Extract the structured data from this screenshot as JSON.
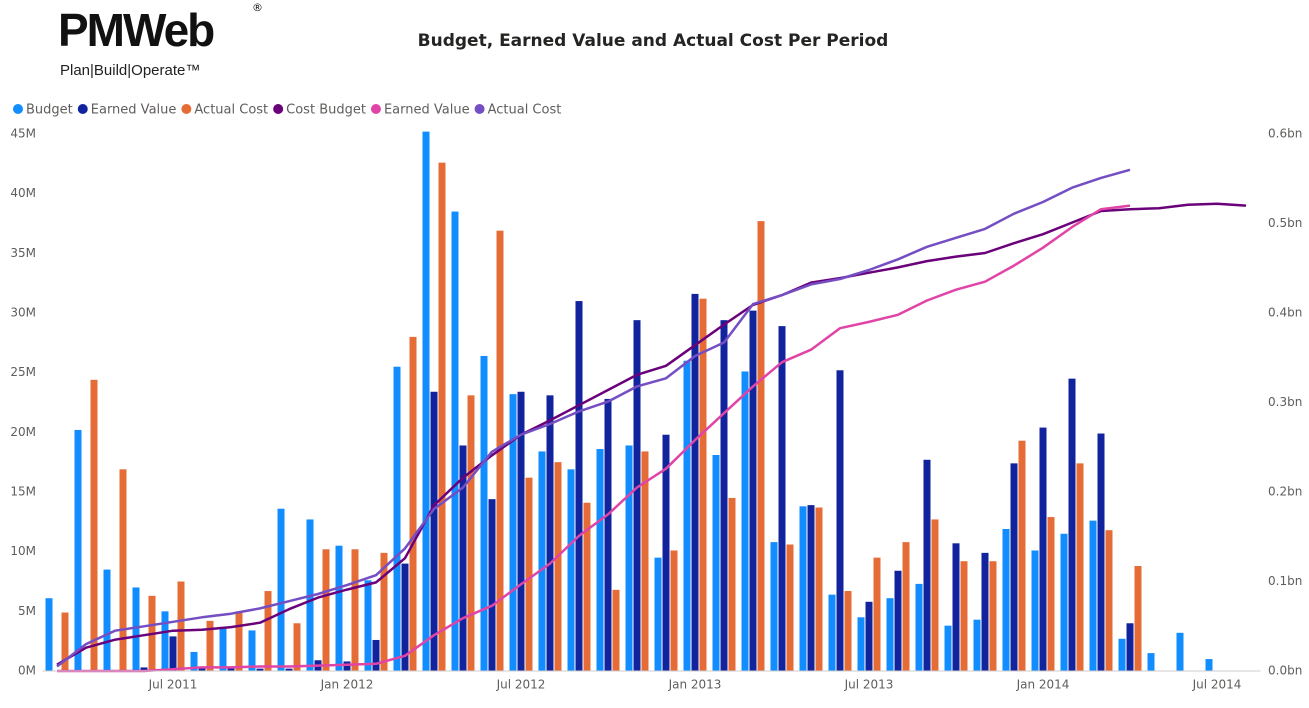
{
  "logo": {
    "name": "PMWeb",
    "registered": "®",
    "tagline": "Plan|Build|Operate™"
  },
  "chart_data": {
    "type": "bar",
    "title": "Budget, Earned Value and Actual Cost Per Period",
    "categories": [
      null,
      null,
      null,
      null,
      "Jul 2011",
      null,
      null,
      null,
      null,
      null,
      "Jan 2012",
      null,
      null,
      null,
      null,
      null,
      "Jul 2012",
      null,
      null,
      null,
      null,
      null,
      "Jan 2013",
      null,
      null,
      null,
      null,
      null,
      "Jul 2013",
      null,
      null,
      null,
      null,
      null,
      "Jan 2014",
      null,
      null,
      null,
      null,
      null,
      "Jul 2014",
      null
    ],
    "ylim": [
      0,
      45
    ],
    "yticks": [
      {
        "value": 0,
        "label": "0M"
      },
      {
        "value": 5,
        "label": "5M"
      },
      {
        "value": 10,
        "label": "10M"
      },
      {
        "value": 15,
        "label": "15M"
      },
      {
        "value": 20,
        "label": "20M"
      },
      {
        "value": 25,
        "label": "25M"
      },
      {
        "value": 30,
        "label": "30M"
      },
      {
        "value": 35,
        "label": "35M"
      },
      {
        "value": 40,
        "label": "40M"
      },
      {
        "value": 45,
        "label": "45M"
      }
    ],
    "y2lim": [
      0,
      0.6
    ],
    "y2ticks": [
      {
        "value": 0,
        "label": "0.0bn"
      },
      {
        "value": 0.1,
        "label": "0.1bn"
      },
      {
        "value": 0.2,
        "label": "0.2bn"
      },
      {
        "value": 0.3,
        "label": "0.3bn"
      },
      {
        "value": 0.4,
        "label": "0.4bn"
      },
      {
        "value": 0.5,
        "label": "0.5bn"
      },
      {
        "value": 0.6,
        "label": "0.6bn"
      }
    ],
    "grid": false,
    "series": [
      {
        "name": "Budget",
        "type": "bar",
        "color": "#118dff",
        "values": [
          6.1,
          20.2,
          8.5,
          7.0,
          5.0,
          1.6,
          3.6,
          3.4,
          13.6,
          12.7,
          10.5,
          7.6,
          25.5,
          45.2,
          38.5,
          26.4,
          23.2,
          18.4,
          16.9,
          18.6,
          18.9,
          9.5,
          26.0,
          18.1,
          25.1,
          10.8,
          13.8,
          6.4,
          4.5,
          6.1,
          7.3,
          3.8,
          4.3,
          11.9,
          10.1,
          11.5,
          12.6,
          2.7,
          1.5,
          3.2,
          1.0,
          null
        ]
      },
      {
        "name": "Earned Value",
        "type": "bar",
        "color": "#12239e",
        "values": [
          0,
          0,
          0,
          0.3,
          2.9,
          0.3,
          0.3,
          0.2,
          0.2,
          0.9,
          0.8,
          2.6,
          9.0,
          23.4,
          18.9,
          14.4,
          23.4,
          23.1,
          31.0,
          22.8,
          29.4,
          19.8,
          31.6,
          29.4,
          30.2,
          28.9,
          13.9,
          25.2,
          5.8,
          8.4,
          17.7,
          10.7,
          9.9,
          17.4,
          20.4,
          24.5,
          19.9,
          4.0,
          null,
          null,
          null,
          null
        ]
      },
      {
        "name": "Actual Cost",
        "type": "bar",
        "color": "#e66c37",
        "values": [
          4.9,
          24.4,
          16.9,
          6.3,
          7.5,
          4.2,
          5.0,
          6.7,
          4.0,
          10.2,
          10.2,
          9.9,
          28.0,
          42.6,
          23.1,
          36.9,
          16.2,
          17.5,
          14.1,
          6.8,
          18.4,
          10.1,
          31.2,
          14.5,
          37.7,
          10.6,
          13.7,
          6.7,
          9.5,
          10.8,
          12.7,
          9.2,
          9.2,
          19.3,
          12.9,
          17.4,
          11.8,
          8.8,
          null,
          null,
          null,
          null
        ]
      },
      {
        "name": "Cost Budget",
        "type": "line",
        "axis": "y2",
        "color": "#6b007b",
        "values": [
          0.007,
          0.026,
          0.035,
          0.04,
          0.045,
          0.046,
          0.049,
          0.054,
          0.069,
          0.082,
          0.091,
          0.099,
          0.126,
          0.185,
          0.216,
          0.241,
          0.264,
          0.28,
          0.297,
          0.314,
          0.331,
          0.341,
          0.364,
          0.387,
          0.409,
          0.42,
          0.434,
          0.439,
          0.445,
          0.451,
          0.458,
          0.463,
          0.467,
          0.478,
          0.488,
          0.501,
          0.514,
          0.516,
          0.517,
          0.521,
          0.522,
          0.52
        ]
      },
      {
        "name": "Earned Value",
        "type": "line",
        "axis": "y2",
        "color": "#e044a7",
        "values": [
          0,
          0,
          0,
          0,
          0.002,
          0.004,
          0.004,
          0.005,
          0.005,
          0.006,
          0.007,
          0.008,
          0.017,
          0.04,
          0.059,
          0.073,
          0.097,
          0.12,
          0.151,
          0.175,
          0.205,
          0.226,
          0.258,
          0.288,
          0.318,
          0.345,
          0.359,
          0.383,
          0.39,
          0.398,
          0.414,
          0.426,
          0.435,
          0.453,
          0.473,
          0.496,
          0.516,
          0.52,
          null,
          null,
          null,
          null
        ]
      },
      {
        "name": "Actual Cost",
        "type": "line",
        "axis": "y2",
        "color": "#744ec2",
        "values": [
          0.005,
          0.03,
          0.045,
          0.05,
          0.055,
          0.06,
          0.064,
          0.07,
          0.078,
          0.086,
          0.096,
          0.107,
          0.137,
          0.181,
          0.205,
          0.245,
          0.264,
          0.276,
          0.29,
          0.301,
          0.318,
          0.327,
          0.352,
          0.367,
          0.41,
          0.42,
          0.432,
          0.438,
          0.448,
          0.46,
          0.474,
          0.484,
          0.494,
          0.511,
          0.524,
          0.54,
          0.551,
          0.56,
          null,
          null,
          null,
          null
        ]
      }
    ]
  }
}
